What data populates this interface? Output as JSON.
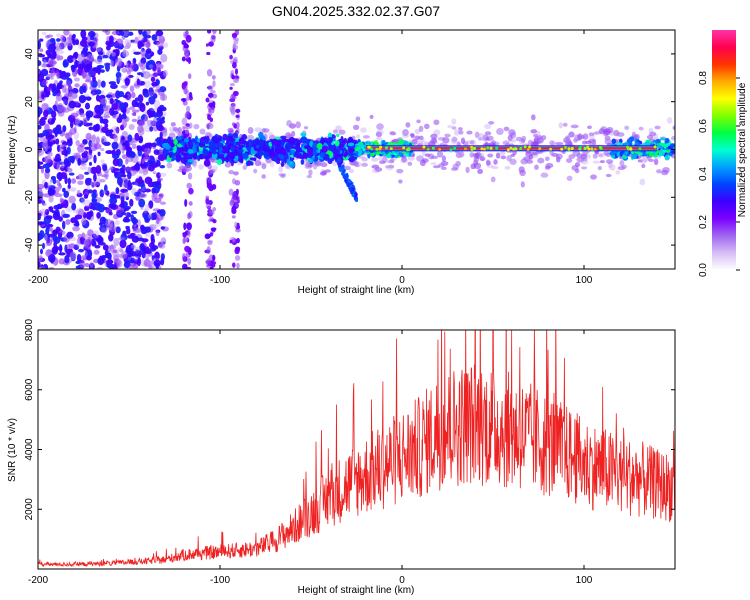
{
  "title": "GN04.2025.332.02.37.G07",
  "chart_data": [
    {
      "type": "heatmap",
      "xlabel": "Height of straight line (km)",
      "ylabel": "Frequency (Hz)",
      "xlim": [
        -200,
        150
      ],
      "ylim": [
        -50,
        50
      ],
      "xticks": [
        -200,
        -100,
        0,
        100
      ],
      "yticks": [
        -40,
        -20,
        0,
        20,
        40
      ],
      "colorbar": {
        "label": "Normalized spectral amplitude",
        "range": [
          0,
          1
        ],
        "ticks": [
          "0.0",
          "0.2",
          "0.4",
          "0.6",
          "0.8"
        ],
        "colormap": [
          "#ffffff",
          "#d7bdf5",
          "#a066f0",
          "#7a00ff",
          "#3b00ff",
          "#0044ff",
          "#00a0ff",
          "#00ffd0",
          "#00ff40",
          "#80ff00",
          "#ffff00",
          "#ffaa00",
          "#ff3300",
          "#ff0050",
          "#ff33aa"
        ]
      },
      "features": {
        "noise_region_x": [
          -200,
          -130
        ],
        "broadband_x": [
          -130,
          -25
        ],
        "broadband_halfwidth_hz": 7,
        "carrier_x": [
          -20,
          140
        ],
        "carrier_freq_hz": 0.5,
        "spur_x": [
          -35,
          -25
        ],
        "spur_freq_range_hz": [
          -20,
          -5
        ]
      }
    },
    {
      "type": "line",
      "xlabel": "Height of straight line (km)",
      "ylabel": "SNR (10 * v/v)",
      "xlim": [
        -200,
        150
      ],
      "ylim": [
        0,
        8000
      ],
      "xticks": [
        -200,
        -100,
        0,
        100
      ],
      "yticks": [
        2000,
        4000,
        6000,
        8000
      ],
      "series": [
        {
          "color": "#ee2222",
          "x": [
            -200,
            -180,
            -160,
            -140,
            -130,
            -120,
            -110,
            -100,
            -90,
            -80,
            -70,
            -60,
            -50,
            -40,
            -30,
            -20,
            -10,
            0,
            10,
            20,
            30,
            40,
            50,
            60,
            70,
            80,
            90,
            100,
            110,
            120,
            130,
            140,
            150
          ],
          "y": [
            150,
            150,
            180,
            250,
            300,
            450,
            500,
            550,
            600,
            650,
            900,
            1300,
            1800,
            2300,
            2700,
            3000,
            3300,
            3600,
            3900,
            4400,
            4600,
            4700,
            4600,
            4400,
            4200,
            4000,
            3700,
            3400,
            3200,
            3000,
            2900,
            2700,
            2600
          ]
        }
      ]
    }
  ]
}
